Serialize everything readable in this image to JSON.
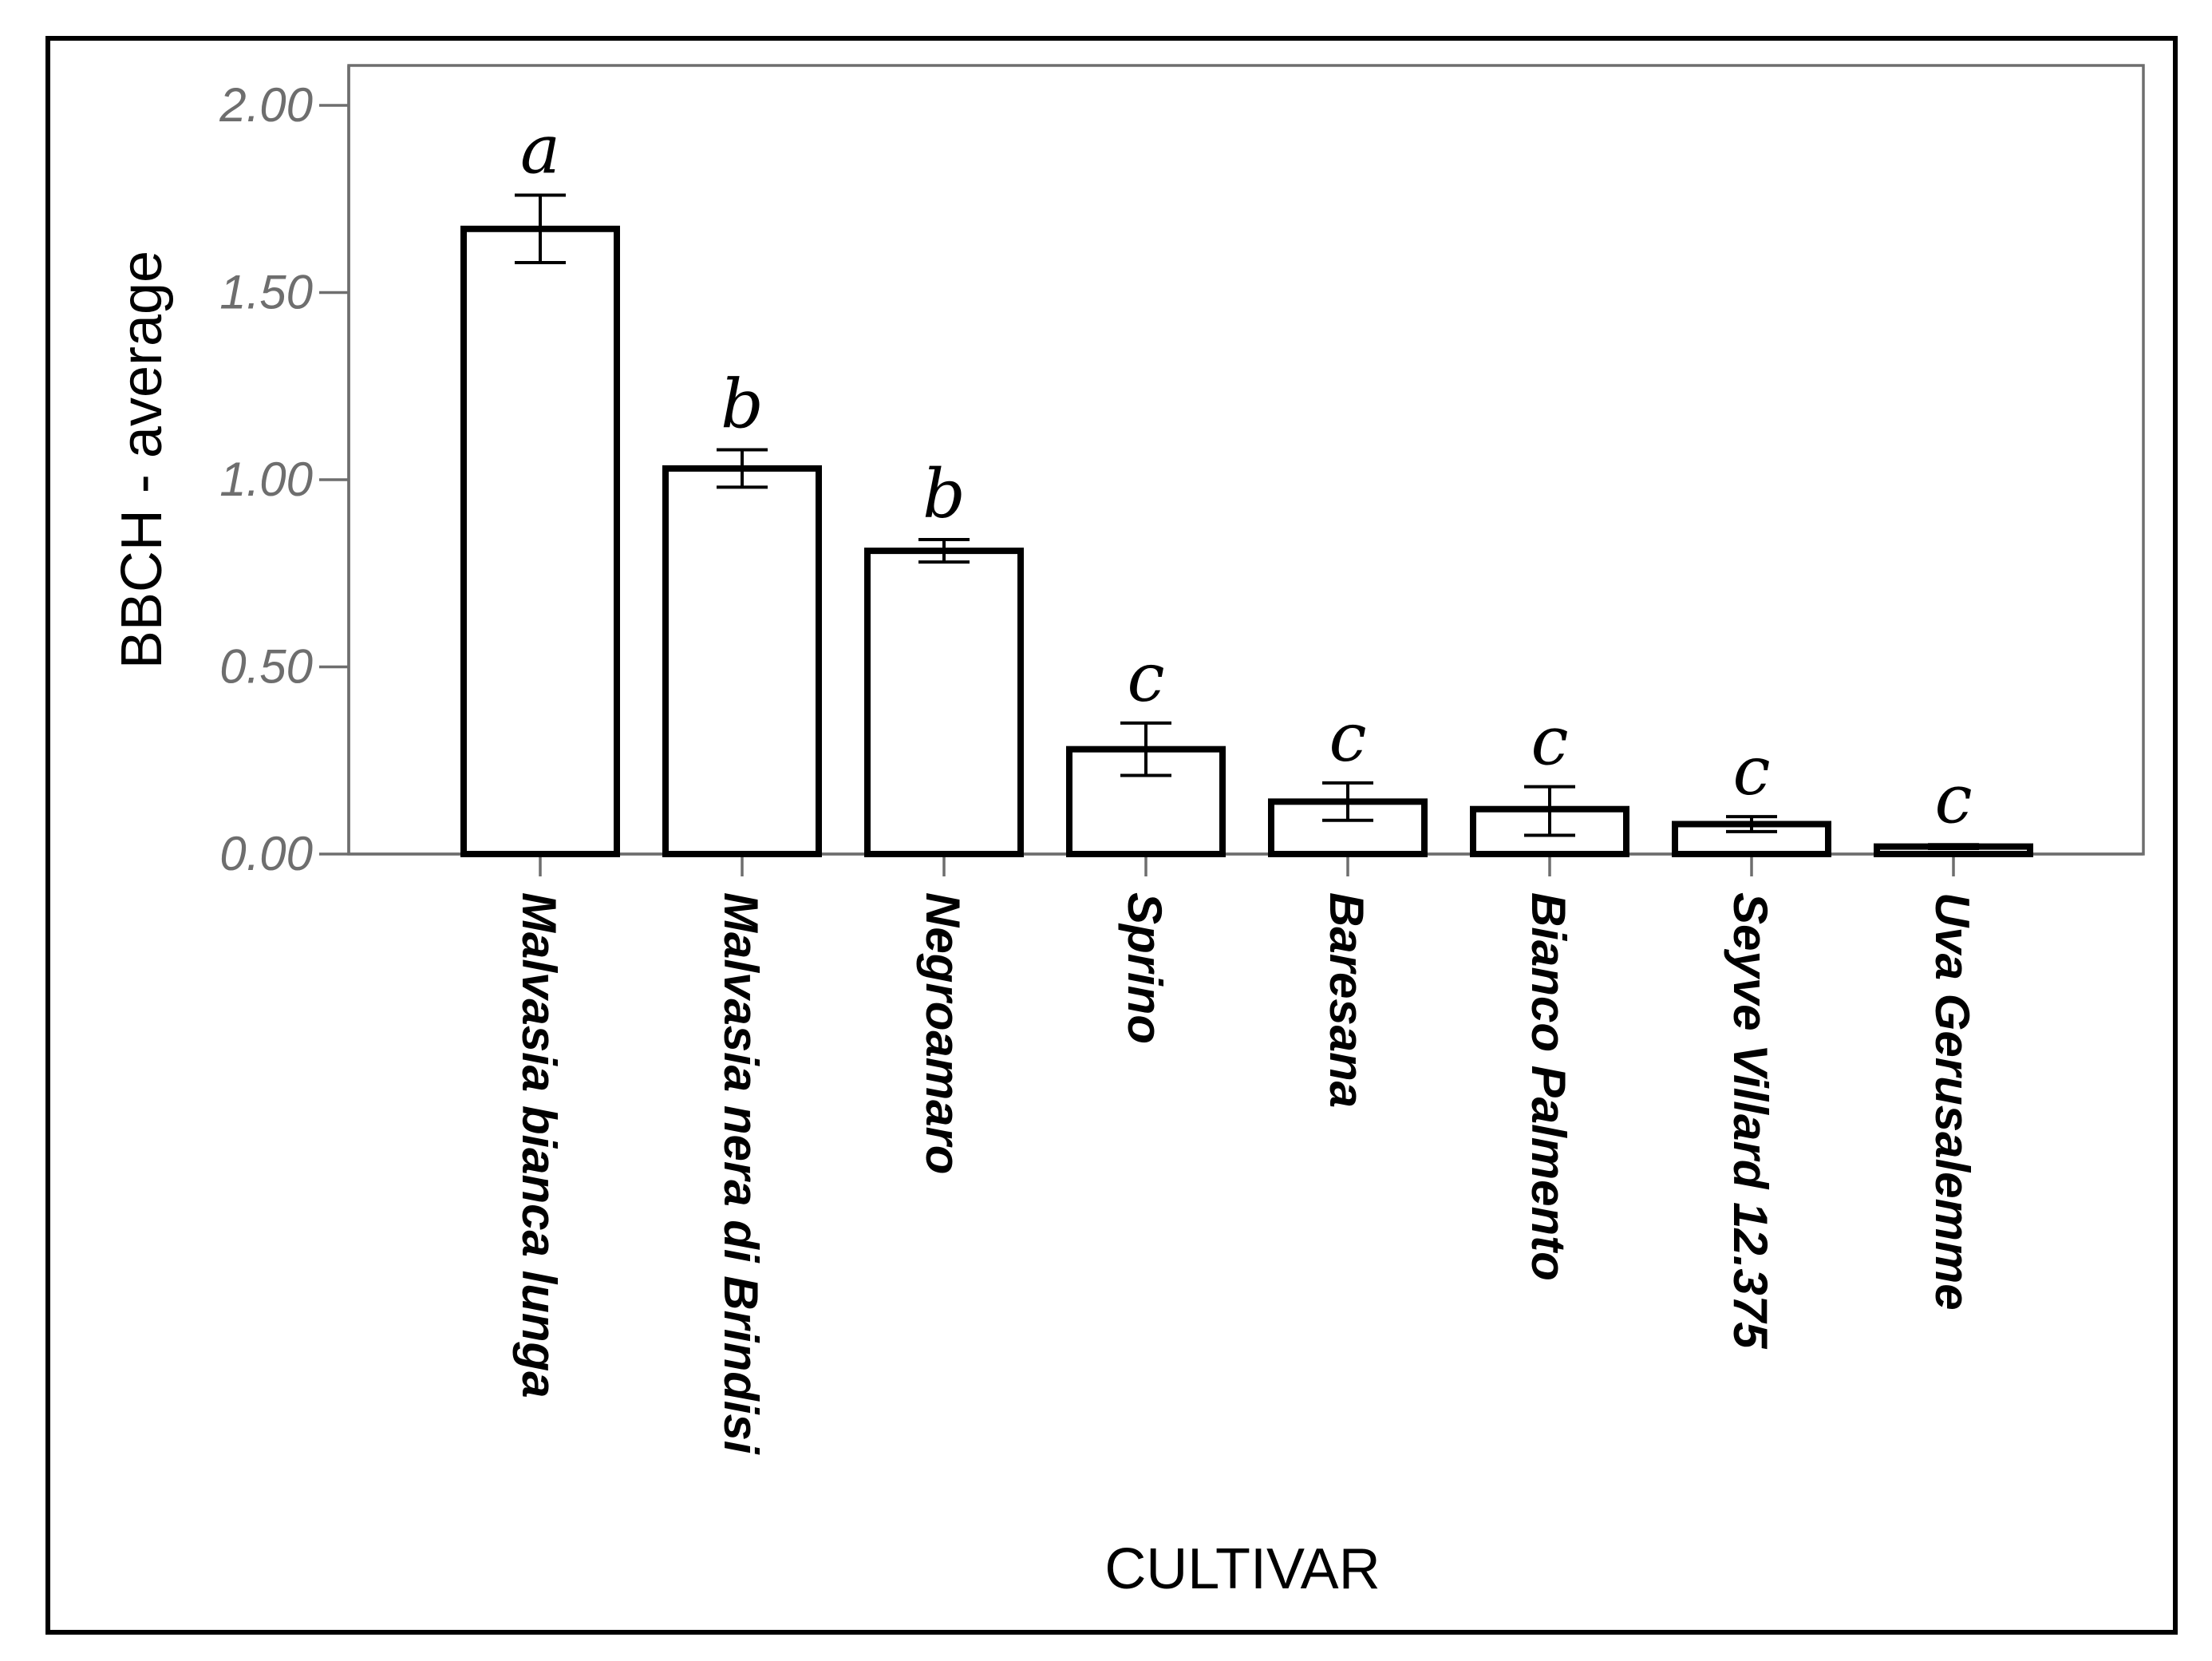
{
  "chart_data": {
    "type": "bar",
    "title": "",
    "xlabel": "CULTIVAR",
    "ylabel": "BBCH - average",
    "ylim": [
      0,
      2.1
    ],
    "yticks": [
      0.0,
      0.5,
      1.0,
      1.5,
      2.0
    ],
    "ytick_labels": [
      "0.00",
      "0.50",
      "1.00",
      "1.50",
      "2.00"
    ],
    "grid": false,
    "categories": [
      "Malvasia bianca lunga",
      "Malvasia nera di Brindisi",
      "Negroamaro",
      "Sprino",
      "Baresana",
      "Bianco Palmento",
      "Seyve Villard 12.375",
      "Uva Gerusalemme"
    ],
    "values": [
      1.67,
      1.03,
      0.81,
      0.28,
      0.14,
      0.12,
      0.08,
      0.02
    ],
    "error_low": [
      1.58,
      0.98,
      0.78,
      0.21,
      0.09,
      0.05,
      0.06,
      0.015
    ],
    "error_high": [
      1.76,
      1.08,
      0.84,
      0.35,
      0.19,
      0.18,
      0.1,
      0.025
    ],
    "significance_letters": [
      "a",
      "b",
      "b",
      "c",
      "c",
      "c",
      "c",
      "c"
    ]
  }
}
